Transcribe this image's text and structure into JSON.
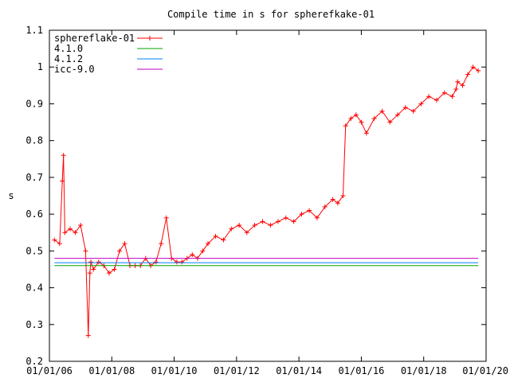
{
  "chart_data": {
    "type": "line",
    "title": "Compile time in s for spherefkake-01",
    "xlabel": "",
    "ylabel": "s",
    "xlim": [
      "2006-01-01",
      "2020-01-01"
    ],
    "ylim": [
      0.2,
      1.1
    ],
    "y_ticks": [
      "0.2",
      "0.3",
      "0.4",
      "0.5",
      "0.6",
      "0.7",
      "0.8",
      "0.9",
      "1",
      "1.1"
    ],
    "x_ticks": [
      "01/01/06",
      "01/01/08",
      "01/01/10",
      "01/01/12",
      "01/01/14",
      "01/01/16",
      "01/01/18",
      "01/01/20"
    ],
    "grid": false,
    "legend_position": "top-left",
    "series": [
      {
        "name": "sphereflake-01",
        "color": "#ff0000",
        "marker": "plus",
        "x": [
          "2006-03-01",
          "2006-05-01",
          "2006-06-01",
          "2006-06-15",
          "2006-07-01",
          "2006-09-01",
          "2006-11-01",
          "2007-01-01",
          "2007-03-01",
          "2007-04-01",
          "2007-04-20",
          "2007-05-01",
          "2007-06-01",
          "2007-08-01",
          "2007-10-01",
          "2007-12-01",
          "2008-02-01",
          "2008-04-01",
          "2008-06-01",
          "2008-08-01",
          "2008-10-01",
          "2008-12-01",
          "2009-02-01",
          "2009-04-01",
          "2009-06-01",
          "2009-08-01",
          "2009-10-01",
          "2009-12-01",
          "2010-02-01",
          "2010-04-01",
          "2010-06-01",
          "2010-08-01",
          "2010-10-01",
          "2010-12-01",
          "2011-02-01",
          "2011-05-01",
          "2011-08-01",
          "2011-11-01",
          "2012-02-01",
          "2012-05-01",
          "2012-08-01",
          "2012-11-01",
          "2013-02-01",
          "2013-05-01",
          "2013-08-01",
          "2013-11-01",
          "2014-02-01",
          "2014-05-01",
          "2014-08-01",
          "2014-11-01",
          "2015-02-01",
          "2015-04-01",
          "2015-06-01",
          "2015-07-01",
          "2015-09-01",
          "2015-11-01",
          "2016-01-01",
          "2016-03-01",
          "2016-06-01",
          "2016-09-01",
          "2016-12-01",
          "2017-03-01",
          "2017-06-01",
          "2017-09-01",
          "2017-12-01",
          "2018-03-01",
          "2018-06-01",
          "2018-09-01",
          "2018-12-01",
          "2019-01-15",
          "2019-02-01",
          "2019-04-01",
          "2019-06-01",
          "2019-08-01",
          "2019-10-01"
        ],
        "y": [
          0.53,
          0.52,
          0.69,
          0.76,
          0.55,
          0.56,
          0.55,
          0.57,
          0.5,
          0.27,
          0.44,
          0.47,
          0.45,
          0.47,
          0.46,
          0.44,
          0.45,
          0.5,
          0.52,
          0.46,
          0.46,
          0.46,
          0.48,
          0.46,
          0.47,
          0.52,
          0.59,
          0.48,
          0.47,
          0.47,
          0.48,
          0.49,
          0.48,
          0.5,
          0.52,
          0.54,
          0.53,
          0.56,
          0.57,
          0.55,
          0.57,
          0.58,
          0.57,
          0.58,
          0.59,
          0.58,
          0.6,
          0.61,
          0.59,
          0.62,
          0.64,
          0.63,
          0.65,
          0.84,
          0.86,
          0.87,
          0.85,
          0.82,
          0.86,
          0.88,
          0.85,
          0.87,
          0.89,
          0.88,
          0.9,
          0.92,
          0.91,
          0.93,
          0.92,
          0.94,
          0.96,
          0.95,
          0.98,
          1.0,
          0.99
        ]
      },
      {
        "name": "4.1.0",
        "color": "#00a000",
        "x": [
          "2006-03-01",
          "2019-10-01"
        ],
        "y": [
          0.46,
          0.46
        ]
      },
      {
        "name": "4.1.2",
        "color": "#0080ff",
        "x": [
          "2006-03-01",
          "2019-10-01"
        ],
        "y": [
          0.468,
          0.468
        ]
      },
      {
        "name": "icc-9.0",
        "color": "#c000c0",
        "x": [
          "2006-03-01",
          "2019-10-01"
        ],
        "y": [
          0.48,
          0.48
        ]
      }
    ]
  }
}
